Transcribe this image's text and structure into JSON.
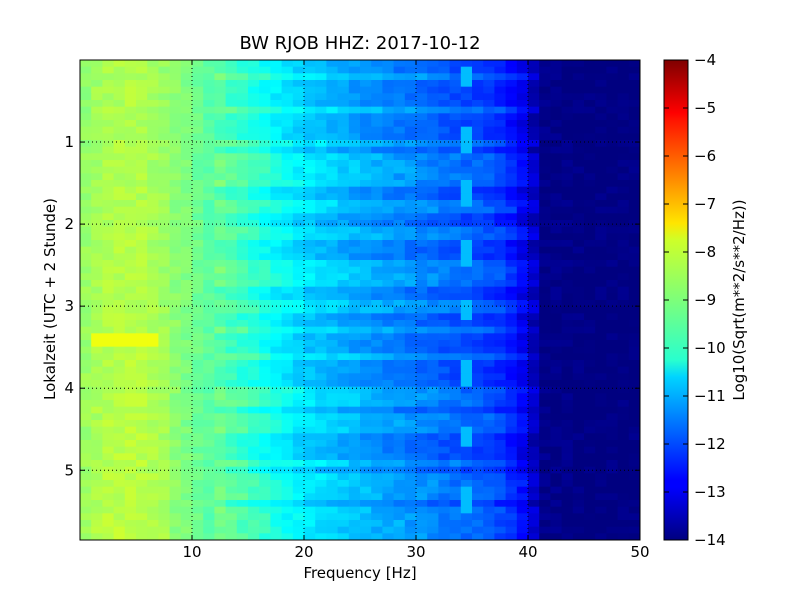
{
  "chart_data": {
    "type": "heatmap",
    "title": "BW RJOB HHZ: 2017-10-12",
    "xlabel": "Frequency [Hz]",
    "ylabel": "Lokalzeit (UTC + 2 Stunde)",
    "colorbar_label": "Log10(Sqrt(m**2/s**2/Hz))",
    "colormap": "jet",
    "xlim": [
      0,
      50
    ],
    "ylim": [
      5.85,
      0
    ],
    "clim": [
      -14,
      -4
    ],
    "x_ticks": [
      10,
      20,
      30,
      40,
      50
    ],
    "x_tick_labels": [
      "10",
      "20",
      "30",
      "40",
      "50"
    ],
    "y_ticks": [
      1,
      2,
      3,
      4,
      5
    ],
    "y_tick_labels": [
      "1",
      "2",
      "3",
      "4",
      "5"
    ],
    "colorbar_ticks": [
      -4,
      -5,
      -6,
      -7,
      -8,
      -9,
      -10,
      -11,
      -12,
      -13,
      -14
    ],
    "colorbar_tick_labels": [
      "−4",
      "−5",
      "−6",
      "−7",
      "−8",
      "−9",
      "−10",
      "−11",
      "−12",
      "−13",
      "−14"
    ],
    "grid": true,
    "spectrum_profile": {
      "frequency_hz": [
        0,
        2,
        5,
        8,
        10,
        13,
        16,
        18,
        20,
        23,
        26,
        30,
        33,
        36,
        38,
        40,
        41,
        45,
        50
      ],
      "log10_level": [
        -8.9,
        -8.6,
        -8.5,
        -8.8,
        -9.1,
        -9.6,
        -10.1,
        -10.5,
        -10.8,
        -11.1,
        -11.4,
        -11.7,
        -12.0,
        -12.2,
        -12.5,
        -13.2,
        -13.9,
        -14.0,
        -14.0
      ]
    },
    "noise_bursts_hours": [
      0.2,
      0.6,
      1.0,
      1.2,
      1.4,
      1.5,
      1.8,
      2.1,
      2.5,
      2.7,
      3.0,
      3.3,
      3.6,
      4.05,
      4.2,
      4.4,
      4.5,
      4.9,
      5.1,
      5.3,
      5.5,
      5.6,
      5.7,
      5.75
    ],
    "tonal_line": {
      "frequency_hz": 34.5,
      "pulse_hours": [
        0.05,
        0.8,
        1.45,
        2.2,
        2.9,
        3.65,
        4.45,
        5.2
      ]
    },
    "low_freq_line": {
      "frequency_hz": 5,
      "start_hour": 5.1,
      "end_hour": 5.85
    },
    "hot_band": {
      "start_hz": 0.8,
      "end_hz": 7.2,
      "hour": 3.38
    }
  }
}
